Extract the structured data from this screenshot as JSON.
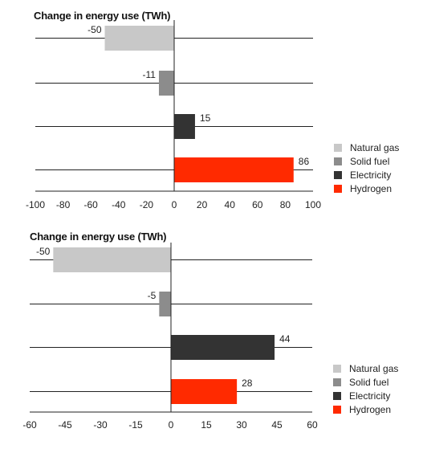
{
  "chart_data": [
    {
      "type": "bar",
      "orientation": "horizontal",
      "title": "Change in energy use (TWh)",
      "categories": [
        "Natural gas",
        "Solid fuel",
        "Electricity",
        "Hydrogen"
      ],
      "values": [
        -50,
        -11,
        15,
        86
      ],
      "value_labels": [
        "-50",
        "-11",
        "15",
        "86"
      ],
      "colors": [
        "#c8c8c8",
        "#8c8c8c",
        "#333333",
        "#ff2a00"
      ],
      "xlim": [
        -100,
        100
      ],
      "xticks": [
        -100,
        -80,
        -60,
        -40,
        -20,
        0,
        20,
        40,
        60,
        80,
        100
      ],
      "xtick_labels": [
        "-100",
        "-80",
        "-60",
        "-40",
        "-20",
        "0",
        "20",
        "40",
        "60",
        "80",
        "100"
      ],
      "grid": "horizontal lines per category",
      "legend": {
        "position": "right",
        "entries": [
          {
            "label": "Natural gas",
            "color": "#c8c8c8"
          },
          {
            "label": "Solid fuel",
            "color": "#8c8c8c"
          },
          {
            "label": "Electricity",
            "color": "#333333"
          },
          {
            "label": "Hydrogen",
            "color": "#ff2a00"
          }
        ]
      }
    },
    {
      "type": "bar",
      "orientation": "horizontal",
      "title": "Change in energy use (TWh)",
      "categories": [
        "Natural gas",
        "Solid fuel",
        "Electricity",
        "Hydrogen"
      ],
      "values": [
        -50,
        -5,
        44,
        28
      ],
      "value_labels": [
        "-50",
        "-5",
        "44",
        "28"
      ],
      "colors": [
        "#c8c8c8",
        "#8c8c8c",
        "#333333",
        "#ff2a00"
      ],
      "xlim": [
        -60,
        60
      ],
      "xticks": [
        -60,
        -45,
        -30,
        -15,
        0,
        15,
        30,
        45,
        60
      ],
      "xtick_labels": [
        "-60",
        "-45",
        "-30",
        "-15",
        "0",
        "15",
        "30",
        "45",
        "60"
      ],
      "grid": "horizontal lines per category",
      "legend": {
        "position": "right",
        "entries": [
          {
            "label": "Natural gas",
            "color": "#c8c8c8"
          },
          {
            "label": "Solid fuel",
            "color": "#8c8c8c"
          },
          {
            "label": "Electricity",
            "color": "#333333"
          },
          {
            "label": "Hydrogen",
            "color": "#ff2a00"
          }
        ]
      }
    }
  ]
}
